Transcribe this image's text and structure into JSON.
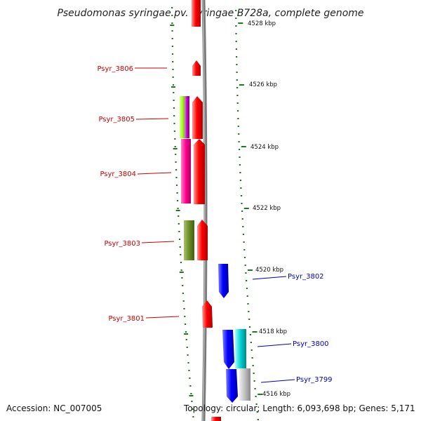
{
  "title": "Pseudomonas syringae pv. syringae B728a, complete genome",
  "footer": {
    "accession": "Accession: NC_007005",
    "topology": "Topology: circular; Length: 6,093,698 bp; Genes: 5,171"
  },
  "kbp_ticks": [
    "4528 kbp",
    "4526 kbp",
    "4524 kbp",
    "4522 kbp",
    "4520 kbp",
    "4518 kbp",
    "4516 kbp"
  ],
  "genes_left": [
    "Psyr_3806",
    "Psyr_3805",
    "Psyr_3804",
    "Psyr_3803",
    "Psyr_3801"
  ],
  "genes_right": [
    "Psyr_3802",
    "Psyr_3800",
    "Psyr_3799"
  ],
  "colors": {
    "forward_strand": "#ff0000",
    "reverse_strand": "#0000ff",
    "tick": "#1b7a1b",
    "backbone": "#808080",
    "label_left": "#cc0000",
    "label_right": "#0000bb"
  }
}
